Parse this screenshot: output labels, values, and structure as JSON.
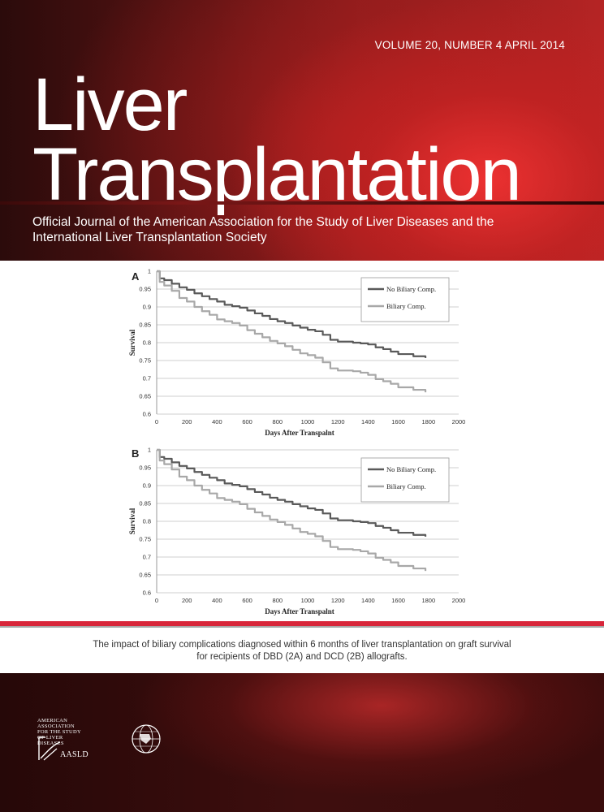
{
  "cover": {
    "volume_line": "VOLUME 20, NUMBER 4   APRIL 2014",
    "title_line1": "Liver",
    "title_line2": "Transplantation",
    "subtitle_line1": "Official Journal of the American Association for the Study of Liver Diseases and the",
    "subtitle_line2": "International Liver Transplantation Society",
    "caption_line1": "The impact of biliary complications diagnosed within 6 months of liver transplantation on graft survival",
    "caption_line2": "for recipients of DBD (2A) and DCD (2B) allografts.",
    "logo_aasld_top": "American Association for the Study of Liver Diseases",
    "logo_aasld_name": "AASLD",
    "logo_ilts": "ILTS"
  },
  "chart_data": [
    {
      "type": "line",
      "panel_label": "A",
      "xlabel": "Days After Transpalnt",
      "ylabel": "Survival",
      "xlim": [
        0,
        2000
      ],
      "ylim": [
        0.6,
        1
      ],
      "x_ticks": [
        0,
        200,
        400,
        600,
        800,
        1000,
        1200,
        1400,
        1600,
        1800,
        2000
      ],
      "y_ticks": [
        0.6,
        0.65,
        0.7,
        0.75,
        0.8,
        0.85,
        0.9,
        0.95,
        1
      ],
      "grid": true,
      "legend_position": "top-right",
      "series": [
        {
          "name": "No Biliary Comp.",
          "color": "#5a5a5a",
          "x": [
            0,
            20,
            50,
            100,
            150,
            200,
            250,
            300,
            350,
            400,
            450,
            500,
            550,
            600,
            650,
            700,
            750,
            800,
            850,
            900,
            950,
            1000,
            1050,
            1100,
            1150,
            1200,
            1300,
            1350,
            1400,
            1450,
            1500,
            1550,
            1600,
            1700,
            1780
          ],
          "y": [
            1.0,
            0.98,
            0.975,
            0.965,
            0.955,
            0.948,
            0.938,
            0.93,
            0.922,
            0.915,
            0.906,
            0.902,
            0.898,
            0.89,
            0.882,
            0.875,
            0.866,
            0.86,
            0.855,
            0.848,
            0.842,
            0.836,
            0.832,
            0.822,
            0.808,
            0.803,
            0.8,
            0.798,
            0.795,
            0.787,
            0.782,
            0.775,
            0.768,
            0.762,
            0.757
          ]
        },
        {
          "name": "Biliary Comp.",
          "color": "#a8a8a8",
          "x": [
            0,
            20,
            50,
            100,
            150,
            200,
            250,
            300,
            350,
            400,
            450,
            500,
            550,
            600,
            650,
            700,
            750,
            800,
            850,
            900,
            950,
            1000,
            1050,
            1100,
            1150,
            1200,
            1300,
            1350,
            1400,
            1450,
            1500,
            1550,
            1600,
            1700,
            1780
          ],
          "y": [
            1.0,
            0.97,
            0.96,
            0.945,
            0.925,
            0.915,
            0.9,
            0.888,
            0.878,
            0.865,
            0.86,
            0.855,
            0.848,
            0.835,
            0.825,
            0.815,
            0.805,
            0.798,
            0.79,
            0.78,
            0.77,
            0.765,
            0.758,
            0.745,
            0.728,
            0.722,
            0.72,
            0.716,
            0.71,
            0.698,
            0.692,
            0.685,
            0.675,
            0.668,
            0.661
          ]
        }
      ]
    },
    {
      "type": "line",
      "panel_label": "B",
      "xlabel": "Days After Transpalnt",
      "ylabel": "Survival",
      "xlim": [
        0,
        2000
      ],
      "ylim": [
        0.6,
        1
      ],
      "x_ticks": [
        0,
        200,
        400,
        600,
        800,
        1000,
        1200,
        1400,
        1600,
        1800,
        2000
      ],
      "y_ticks": [
        0.6,
        0.65,
        0.7,
        0.75,
        0.8,
        0.85,
        0.9,
        0.95,
        1
      ],
      "grid": true,
      "legend_position": "top-right",
      "series": [
        {
          "name": "No Biliary Comp.",
          "color": "#5a5a5a",
          "x": [
            0,
            20,
            50,
            100,
            150,
            200,
            250,
            300,
            350,
            400,
            450,
            500,
            550,
            600,
            650,
            700,
            750,
            800,
            850,
            900,
            950,
            1000,
            1050,
            1100,
            1150,
            1200,
            1300,
            1350,
            1400,
            1450,
            1500,
            1550,
            1600,
            1700,
            1780
          ],
          "y": [
            1.0,
            0.98,
            0.975,
            0.965,
            0.955,
            0.948,
            0.938,
            0.93,
            0.922,
            0.915,
            0.906,
            0.902,
            0.898,
            0.89,
            0.882,
            0.875,
            0.866,
            0.86,
            0.855,
            0.848,
            0.842,
            0.836,
            0.832,
            0.822,
            0.808,
            0.803,
            0.8,
            0.798,
            0.795,
            0.787,
            0.782,
            0.775,
            0.768,
            0.762,
            0.757
          ]
        },
        {
          "name": "Biliary Comp.",
          "color": "#a8a8a8",
          "x": [
            0,
            20,
            50,
            100,
            150,
            200,
            250,
            300,
            350,
            400,
            450,
            500,
            550,
            600,
            650,
            700,
            750,
            800,
            850,
            900,
            950,
            1000,
            1050,
            1100,
            1150,
            1200,
            1300,
            1350,
            1400,
            1450,
            1500,
            1550,
            1600,
            1700,
            1780
          ],
          "y": [
            1.0,
            0.97,
            0.96,
            0.945,
            0.925,
            0.915,
            0.9,
            0.888,
            0.878,
            0.865,
            0.86,
            0.855,
            0.848,
            0.835,
            0.825,
            0.815,
            0.805,
            0.798,
            0.79,
            0.78,
            0.77,
            0.765,
            0.758,
            0.745,
            0.728,
            0.722,
            0.72,
            0.716,
            0.71,
            0.698,
            0.692,
            0.685,
            0.675,
            0.668,
            0.661
          ]
        }
      ]
    }
  ]
}
